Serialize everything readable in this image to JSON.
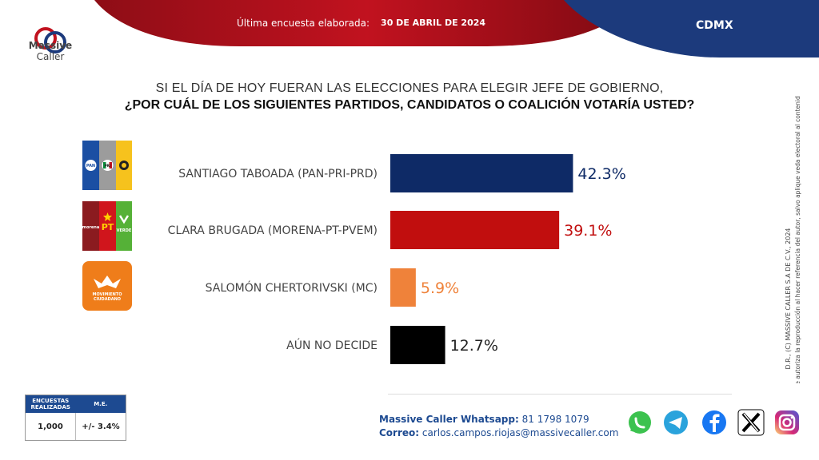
{
  "header": {
    "survey_label": "Última encuesta elaborada:",
    "survey_date": "30 DE ABRIL DE 2024",
    "region": "CDMX",
    "brand_line1": "Massive",
    "brand_line2": "Caller"
  },
  "question": {
    "line1": "SI EL DÍA DE HOY FUERAN LAS ELECCIONES PARA ELEGIR JEFE DE GOBIERNO,",
    "line2": "¿POR CUÁL DE LOS SIGUIENTES PARTIDOS, CANDIDATOS O COALICIÓN VOTARÍA USTED?"
  },
  "party_logos": {
    "pan": "PAN",
    "pri": "PRI",
    "morena": "morena",
    "pt": "PT",
    "verde": "VERDE",
    "mc_line1": "MOVIMIENTO",
    "mc_line2": "CIUDADANO"
  },
  "chart_data": {
    "type": "bar",
    "orientation": "horizontal",
    "title": "¿POR CUÁL DE LOS SIGUIENTES PARTIDOS, CANDIDATOS O COALICIÓN VOTARÍA USTED?",
    "categories": [
      "SANTIAGO TABOADA (PAN-PRI-PRD)",
      "CLARA BRUGADA (MORENA-PT-PVEM)",
      "SALOMÓN CHERTORIVSKI (MC)",
      "AÚN NO DECIDE"
    ],
    "values": [
      42.3,
      39.1,
      5.9,
      12.7
    ],
    "value_labels": [
      "42.3%",
      "39.1%",
      "5.9%",
      "12.7%"
    ],
    "colors": [
      "#0e2a66",
      "#c10e0e",
      "#ef823a",
      "#000000"
    ],
    "label_colors": [
      "#0e2a66",
      "#c10e0e",
      "#ef823a",
      "#222222"
    ],
    "xlim": [
      0,
      100
    ],
    "xlabel": "",
    "ylabel": ""
  },
  "stats": {
    "col1_header": "ENCUESTAS REALIZADAS",
    "col2_header": "M.E.",
    "sample": "1,000",
    "margin": "+/- 3.4%"
  },
  "contact": {
    "whatsapp_label": "Massive Caller Whatsapp:",
    "whatsapp_value": "81 1798 1079",
    "email_label": "Correo:",
    "email_value": "carlos.campos.riojas@massivecaller.com"
  },
  "legal": {
    "line1": "D.R., (C) MASSIVE CALLER S.A DE C.V., 2024",
    "line2": "Se autoriza la reproducción al hacer referencia del autor, salvo aplique veda electoral al contenido."
  },
  "colors": {
    "red": "#b8141f",
    "navy": "#1c3a7c",
    "blue_accent": "#1d4a91"
  }
}
